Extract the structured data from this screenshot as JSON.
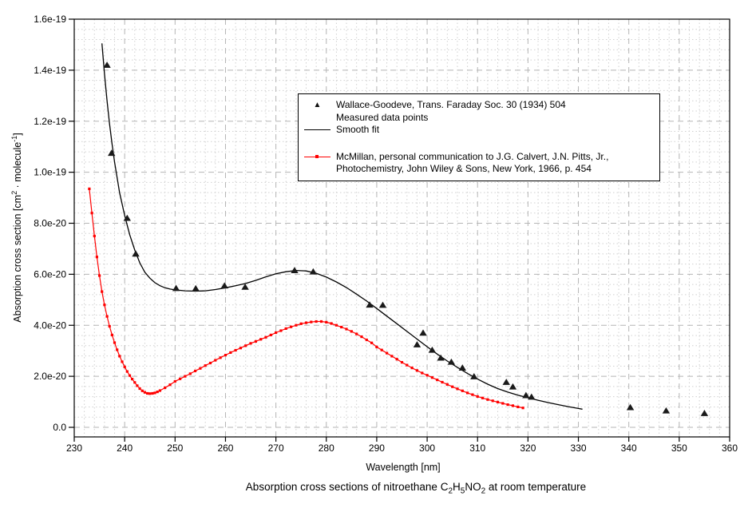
{
  "figure": {
    "xlabel": "Wavelength [nm]",
    "ylabel": {
      "p1": "Absorption cross section [cm",
      "sup1": "2",
      "p2": " · molecule",
      "sup2": "-1",
      "p3": "]"
    },
    "caption": {
      "p1": "Absorption cross sections of nitroethane C",
      "sub1": "2",
      "p2": "H",
      "sub2": "5",
      "p3": "NO",
      "sub3": "2",
      "p4": " at room temperature"
    }
  },
  "legend": {
    "markers": {
      "triangle": "▲"
    },
    "wallace_line1": "Wallace-Goodeve, Trans. Faraday Soc. 30 (1934) 504",
    "wallace_line2": "Measured data points",
    "smooth_label": "Smooth fit",
    "mcmillan_line1": "McMillan, personal communication to J.G. Calvert, J.N. Pitts, Jr.,",
    "mcmillan_line2": "Photochemistry, John Wiley & Sons, New York, 1966, p. 454"
  },
  "chart_data": {
    "type": "line",
    "title": "Absorption cross sections of nitroethane C2H5NO2 at room temperature",
    "xlabel": "Wavelength [nm]",
    "ylabel": "Absorption cross section [cm^2 · molecule^-1]",
    "xlim": [
      230,
      360
    ],
    "ylim_display": [
      -4e-21,
      1.6e-19
    ],
    "values_unit": "1e-20 cm^2 / molecule",
    "grid": {
      "major": "dashed",
      "minor": "dotted",
      "x_minor_step_nm": 2,
      "y_minor_step": 0.4
    },
    "legend_position": "upper center inside plot",
    "colors": {
      "wallace": "#1a1a1a",
      "smooth_fit": "#000000",
      "mcmillan": "#ff0000",
      "grid_major": "#b5b5b5",
      "grid_minor": "#d0d0d0",
      "frame": "#000000"
    },
    "x_axis": {
      "ticks": [
        230,
        240,
        250,
        260,
        270,
        280,
        290,
        300,
        310,
        320,
        330,
        340,
        350,
        360
      ]
    },
    "y_axis": {
      "tick_values": [
        0,
        2,
        4,
        6,
        8,
        10,
        12,
        14,
        16
      ],
      "tick_labels": [
        "0.0",
        "2.0e-20",
        "4.0e-20",
        "6.0e-20",
        "8.0e-20",
        "1.0e-19",
        "1.2e-19",
        "1.4e-19",
        "1.6e-19"
      ]
    },
    "series": [
      {
        "id": "wallace_points",
        "name": "Wallace-Goodeve, Trans. Faraday Soc. 30 (1934) 504 — Measured data points",
        "type": "scatter",
        "marker": "triangle",
        "color": "#1a1a1a",
        "points": [
          [
            236.5,
            14.2
          ],
          [
            237.4,
            10.75
          ],
          [
            240.5,
            8.2
          ],
          [
            242.2,
            6.8
          ],
          [
            250.2,
            5.45
          ],
          [
            254.1,
            5.44
          ],
          [
            259.8,
            5.55
          ],
          [
            263.9,
            5.5
          ],
          [
            273.7,
            6.15
          ],
          [
            277.4,
            6.1
          ],
          [
            288.6,
            4.8
          ],
          [
            291.2,
            4.79
          ],
          [
            298.0,
            3.24
          ],
          [
            299.2,
            3.7
          ],
          [
            301.0,
            3.03
          ],
          [
            302.7,
            2.72
          ],
          [
            304.8,
            2.56
          ],
          [
            307.0,
            2.33
          ],
          [
            309.3,
            1.99
          ],
          [
            315.7,
            1.77
          ],
          [
            317.0,
            1.59
          ],
          [
            319.6,
            1.25
          ],
          [
            320.7,
            1.19
          ],
          [
            340.3,
            0.78
          ],
          [
            347.4,
            0.65
          ],
          [
            355.0,
            0.55
          ]
        ]
      },
      {
        "id": "smooth_fit",
        "name": "Smooth fit",
        "type": "line",
        "marker": "none",
        "color": "#000000",
        "points": [
          [
            235.5,
            15.05
          ],
          [
            236,
            13.85
          ],
          [
            236.5,
            12.8
          ],
          [
            237,
            11.9
          ],
          [
            237.5,
            11.1
          ],
          [
            238,
            10.4
          ],
          [
            239,
            9.2
          ],
          [
            240,
            8.3
          ],
          [
            241,
            7.55
          ],
          [
            242,
            6.95
          ],
          [
            243,
            6.45
          ],
          [
            244,
            6.08
          ],
          [
            245,
            5.85
          ],
          [
            246,
            5.67
          ],
          [
            247,
            5.55
          ],
          [
            248,
            5.47
          ],
          [
            249,
            5.42
          ],
          [
            250,
            5.39
          ],
          [
            252,
            5.35
          ],
          [
            254,
            5.34
          ],
          [
            256,
            5.35
          ],
          [
            258,
            5.4
          ],
          [
            260,
            5.47
          ],
          [
            262,
            5.55
          ],
          [
            264,
            5.64
          ],
          [
            266,
            5.76
          ],
          [
            268,
            5.9
          ],
          [
            270,
            6.02
          ],
          [
            272,
            6.1
          ],
          [
            274,
            6.15
          ],
          [
            276,
            6.13
          ],
          [
            278,
            6.04
          ],
          [
            280,
            5.89
          ],
          [
            282,
            5.7
          ],
          [
            284,
            5.48
          ],
          [
            286,
            5.22
          ],
          [
            288,
            4.95
          ],
          [
            290,
            4.66
          ],
          [
            292,
            4.36
          ],
          [
            294,
            4.06
          ],
          [
            296,
            3.76
          ],
          [
            298,
            3.46
          ],
          [
            300,
            3.16
          ],
          [
            302,
            2.87
          ],
          [
            304,
            2.6
          ],
          [
            306,
            2.35
          ],
          [
            308,
            2.11
          ],
          [
            310,
            1.89
          ],
          [
            312,
            1.69
          ],
          [
            314,
            1.52
          ],
          [
            316,
            1.38
          ],
          [
            318,
            1.26
          ],
          [
            320,
            1.16
          ],
          [
            322,
            1.06
          ],
          [
            324,
            0.97
          ],
          [
            326,
            0.89
          ],
          [
            328,
            0.81
          ],
          [
            330,
            0.74
          ],
          [
            330.8,
            0.71
          ]
        ]
      },
      {
        "id": "mcmillan_curve",
        "name": "McMillan, personal communication to J.G. Calvert, J.N. Pitts, Jr., Photochemistry, John Wiley & Sons, New York, 1966, p. 454",
        "type": "line",
        "marker": "square",
        "color": "#ff0000",
        "points": [
          [
            233,
            9.35
          ],
          [
            233.5,
            8.4
          ],
          [
            234,
            7.5
          ],
          [
            234.5,
            6.68
          ],
          [
            235,
            5.95
          ],
          [
            235.5,
            5.32
          ],
          [
            236,
            4.8
          ],
          [
            236.5,
            4.35
          ],
          [
            237,
            3.96
          ],
          [
            237.5,
            3.62
          ],
          [
            238,
            3.32
          ],
          [
            238.5,
            3.04
          ],
          [
            239,
            2.79
          ],
          [
            239.5,
            2.57
          ],
          [
            240,
            2.37
          ],
          [
            240.5,
            2.19
          ],
          [
            241,
            2.03
          ],
          [
            241.5,
            1.89
          ],
          [
            242,
            1.76
          ],
          [
            242.5,
            1.63
          ],
          [
            243,
            1.52
          ],
          [
            243.5,
            1.43
          ],
          [
            244,
            1.37
          ],
          [
            244.5,
            1.33
          ],
          [
            245,
            1.32
          ],
          [
            245.5,
            1.33
          ],
          [
            246,
            1.35
          ],
          [
            246.5,
            1.39
          ],
          [
            247,
            1.44
          ],
          [
            248,
            1.55
          ],
          [
            249,
            1.67
          ],
          [
            250,
            1.8
          ],
          [
            251,
            1.9
          ],
          [
            252,
            2.0
          ],
          [
            253,
            2.1
          ],
          [
            254,
            2.21
          ],
          [
            255,
            2.31
          ],
          [
            256,
            2.42
          ],
          [
            257,
            2.52
          ],
          [
            258,
            2.63
          ],
          [
            259,
            2.73
          ],
          [
            260,
            2.83
          ],
          [
            261,
            2.93
          ],
          [
            262,
            3.02
          ],
          [
            263,
            3.11
          ],
          [
            264,
            3.2
          ],
          [
            265,
            3.29
          ],
          [
            266,
            3.37
          ],
          [
            267,
            3.45
          ],
          [
            268,
            3.53
          ],
          [
            269,
            3.62
          ],
          [
            270,
            3.71
          ],
          [
            271,
            3.79
          ],
          [
            272,
            3.87
          ],
          [
            273,
            3.94
          ],
          [
            274,
            4.0
          ],
          [
            275,
            4.06
          ],
          [
            276,
            4.1
          ],
          [
            277,
            4.13
          ],
          [
            278,
            4.15
          ],
          [
            279,
            4.15
          ],
          [
            280,
            4.12
          ],
          [
            281,
            4.07
          ],
          [
            282,
            4.0
          ],
          [
            283,
            3.93
          ],
          [
            284,
            3.85
          ],
          [
            285,
            3.76
          ],
          [
            286,
            3.66
          ],
          [
            287,
            3.55
          ],
          [
            288,
            3.43
          ],
          [
            289,
            3.31
          ],
          [
            290,
            3.15
          ],
          [
            291,
            3.03
          ],
          [
            292,
            2.91
          ],
          [
            293,
            2.79
          ],
          [
            294,
            2.67
          ],
          [
            295,
            2.55
          ],
          [
            296,
            2.44
          ],
          [
            297,
            2.33
          ],
          [
            298,
            2.23
          ],
          [
            299,
            2.13
          ],
          [
            300,
            2.04
          ],
          [
            301,
            1.95
          ],
          [
            302,
            1.86
          ],
          [
            303,
            1.77
          ],
          [
            304,
            1.68
          ],
          [
            305,
            1.59
          ],
          [
            306,
            1.51
          ],
          [
            307,
            1.43
          ],
          [
            308,
            1.35
          ],
          [
            309,
            1.28
          ],
          [
            310,
            1.21
          ],
          [
            311,
            1.15
          ],
          [
            312,
            1.09
          ],
          [
            313,
            1.04
          ],
          [
            314,
            0.99
          ],
          [
            315,
            0.94
          ],
          [
            316,
            0.89
          ],
          [
            317,
            0.85
          ],
          [
            318,
            0.8
          ],
          [
            319,
            0.76
          ]
        ]
      }
    ]
  }
}
